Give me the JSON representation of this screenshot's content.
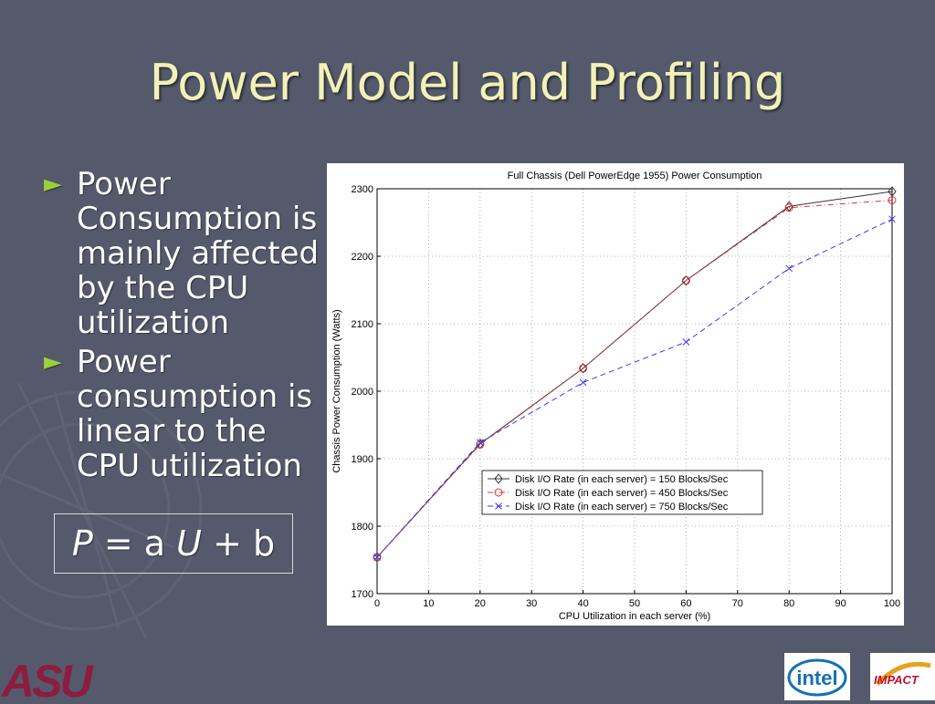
{
  "slide": {
    "title": "Power Model and Profiling",
    "bullets": [
      "Power Consumption is mainly affected by the CPU utilization",
      "Power consumption is linear to the CPU utilization"
    ],
    "formula": {
      "parts": [
        "P",
        " = a ",
        "U",
        " + b"
      ]
    },
    "colors": {
      "background": "#545a6b",
      "title": "#f2f2b8",
      "bullet_arrow": "#9bd13a",
      "asu_maroon": "#8c1d40",
      "intel_blue": "#1470b4"
    },
    "logos": {
      "asu": "ASU",
      "intel": "intel",
      "impact": "IMPACT"
    }
  },
  "chart_data": {
    "type": "line",
    "title": "Full Chassis (Dell PowerEdge 1955) Power Consumption",
    "xlabel": "CPU Utilization in each server (%)",
    "ylabel": "Chassis Power Consumption (Watts)",
    "xlim": [
      0,
      100
    ],
    "ylim": [
      1700,
      2300
    ],
    "xticks": [
      0,
      10,
      20,
      30,
      40,
      50,
      60,
      70,
      80,
      90,
      100
    ],
    "yticks": [
      1700,
      1800,
      1900,
      2000,
      2100,
      2200,
      2300
    ],
    "grid": true,
    "legend_position": "lower-right",
    "x": [
      0,
      20,
      40,
      60,
      80,
      100
    ],
    "series": [
      {
        "name": "Disk I/O Rate (in each server) = 150 Blocks/Sec",
        "values": [
          1754,
          1922,
          2034,
          2164,
          2274,
          2296
        ],
        "color": "#333333",
        "marker": "diamond",
        "dash": "solid"
      },
      {
        "name": "Disk I/O Rate (in each server) = 450 Blocks/Sec",
        "values": [
          1754,
          1921,
          2034,
          2164,
          2272,
          2283
        ],
        "color": "#e03030",
        "marker": "circle",
        "dash": "dashdot"
      },
      {
        "name": "Disk I/O Rate (in each server) = 750 Blocks/Sec",
        "values": [
          1754,
          1924,
          2013,
          2073,
          2182,
          2255
        ],
        "color": "#3a3aff",
        "marker": "x",
        "dash": "dashed"
      }
    ]
  }
}
